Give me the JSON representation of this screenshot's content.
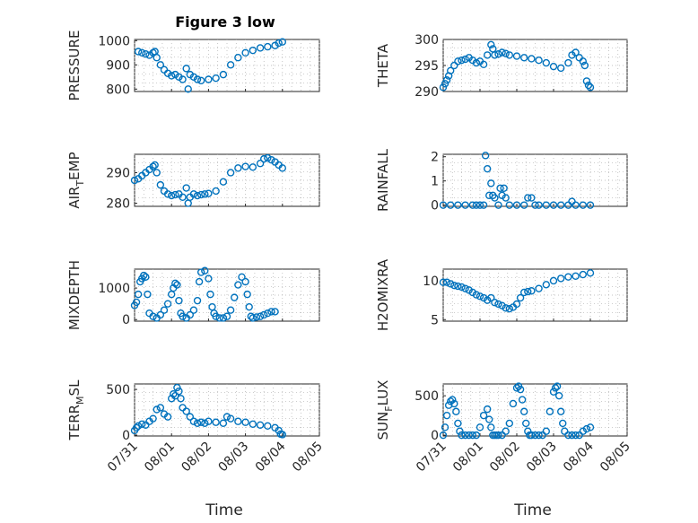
{
  "figure": {
    "title": "Figure 3 low"
  },
  "chart_data": [
    {
      "type": "scatter",
      "id": "pressure",
      "ylabel": "PRESSURE",
      "ylim": [
        790,
        1005
      ],
      "yticks": [
        "800",
        "900",
        "1000"
      ],
      "ytick_values": [
        800,
        900,
        1000
      ],
      "xlim": [
        0,
        5
      ],
      "xtick_labels": [
        "07/31",
        "08/01",
        "08/02",
        "08/03",
        "08/04",
        "08/05"
      ],
      "x": [
        0.1,
        0.2,
        0.3,
        0.4,
        0.5,
        0.55,
        0.6,
        0.7,
        0.8,
        0.9,
        1.0,
        1.1,
        1.2,
        1.3,
        1.4,
        1.45,
        1.5,
        1.6,
        1.7,
        1.8,
        2.0,
        2.2,
        2.4,
        2.6,
        2.8,
        3.0,
        3.2,
        3.4,
        3.6,
        3.8,
        3.9,
        4.0
      ],
      "y": [
        955,
        950,
        945,
        940,
        950,
        955,
        930,
        900,
        880,
        865,
        855,
        860,
        850,
        840,
        885,
        800,
        860,
        850,
        840,
        835,
        840,
        845,
        860,
        900,
        930,
        950,
        960,
        970,
        975,
        980,
        990,
        995
      ]
    },
    {
      "type": "scatter",
      "id": "theta",
      "ylabel": "THETA",
      "ylim": [
        290,
        300
      ],
      "yticks": [
        "290",
        "295",
        "300"
      ],
      "ytick_values": [
        290,
        295,
        300
      ],
      "xlim": [
        0,
        5
      ],
      "x": [
        0.0,
        0.05,
        0.1,
        0.15,
        0.2,
        0.3,
        0.4,
        0.5,
        0.6,
        0.7,
        0.8,
        0.9,
        1.0,
        1.1,
        1.2,
        1.3,
        1.35,
        1.4,
        1.5,
        1.6,
        1.7,
        1.8,
        2.0,
        2.2,
        2.4,
        2.6,
        2.8,
        3.0,
        3.2,
        3.4,
        3.5,
        3.6,
        3.7,
        3.8,
        3.85,
        3.9,
        3.95,
        4.0
      ],
      "y": [
        290.8,
        291.5,
        292.2,
        293,
        294,
        295,
        295.8,
        296,
        296.2,
        296.5,
        296,
        295.5,
        295.8,
        295.2,
        297,
        299,
        298.2,
        297,
        297.2,
        297.5,
        297.3,
        297.0,
        296.8,
        296.5,
        296.3,
        296.0,
        295.5,
        294.8,
        294.5,
        295.5,
        297,
        297.5,
        296.5,
        295.8,
        295,
        292,
        291.2,
        290.8
      ]
    },
    {
      "type": "scatter",
      "id": "air_temp",
      "ylabel_main": "AIR",
      "ylabel_sub": "T",
      "ylabel_rest": "EMP",
      "ylim": [
        279,
        296
      ],
      "yticks": [
        "280",
        "290"
      ],
      "ytick_values": [
        280,
        290
      ],
      "xlim": [
        0,
        5
      ],
      "x": [
        0.0,
        0.1,
        0.2,
        0.3,
        0.4,
        0.5,
        0.55,
        0.6,
        0.7,
        0.8,
        0.9,
        1.0,
        1.1,
        1.2,
        1.3,
        1.4,
        1.45,
        1.5,
        1.6,
        1.7,
        1.8,
        1.9,
        2.0,
        2.2,
        2.4,
        2.6,
        2.8,
        3.0,
        3.2,
        3.4,
        3.5,
        3.6,
        3.7,
        3.8,
        3.9,
        4.0
      ],
      "y": [
        287.5,
        288,
        289,
        290,
        291,
        292,
        292.5,
        290,
        286,
        284,
        283,
        282.5,
        282.8,
        283,
        282,
        285,
        280,
        282,
        283,
        282.5,
        282.8,
        283,
        283.2,
        284,
        287,
        290,
        291.5,
        292,
        291.8,
        293,
        294.5,
        294.8,
        294.2,
        293.5,
        292.5,
        291.5
      ]
    },
    {
      "type": "scatter",
      "id": "rainfall",
      "ylabel": "RAINFALL",
      "ylim": [
        -0.05,
        2.1
      ],
      "yticks": [
        "0",
        "1",
        "2"
      ],
      "ytick_values": [
        0,
        1,
        2
      ],
      "xlim": [
        0,
        5
      ],
      "x": [
        0.0,
        0.2,
        0.4,
        0.6,
        0.8,
        0.9,
        1.0,
        1.1,
        1.15,
        1.2,
        1.25,
        1.3,
        1.35,
        1.4,
        1.5,
        1.55,
        1.6,
        1.65,
        1.7,
        1.8,
        2.0,
        2.2,
        2.3,
        2.4,
        2.5,
        2.6,
        2.8,
        3.0,
        3.2,
        3.4,
        3.5,
        3.6,
        3.8,
        4.0
      ],
      "y": [
        0,
        0,
        0,
        0,
        0,
        0,
        0,
        0,
        2.05,
        1.5,
        0.4,
        0.9,
        0.4,
        0.3,
        0,
        0.7,
        0.4,
        0.7,
        0.3,
        0,
        0,
        0,
        0.3,
        0.3,
        0,
        0,
        0,
        0,
        0,
        0,
        0.15,
        0,
        0,
        0
      ]
    },
    {
      "type": "scatter",
      "id": "mixdepth",
      "ylabel": "MIXDEPTH",
      "ylim": [
        -50,
        1600
      ],
      "yticks": [
        "0",
        "1000"
      ],
      "ytick_values": [
        0,
        1000
      ],
      "xlim": [
        0,
        5
      ],
      "x": [
        0.0,
        0.05,
        0.1,
        0.15,
        0.2,
        0.25,
        0.3,
        0.35,
        0.4,
        0.5,
        0.6,
        0.7,
        0.8,
        0.9,
        1.0,
        1.05,
        1.1,
        1.15,
        1.2,
        1.25,
        1.3,
        1.4,
        1.5,
        1.6,
        1.7,
        1.75,
        1.8,
        1.9,
        2.0,
        2.05,
        2.1,
        2.15,
        2.2,
        2.3,
        2.4,
        2.5,
        2.6,
        2.7,
        2.8,
        2.9,
        3.0,
        3.05,
        3.1,
        3.15,
        3.2,
        3.3,
        3.4,
        3.5,
        3.6,
        3.7,
        3.8
      ],
      "y": [
        450,
        550,
        800,
        1200,
        1300,
        1400,
        1350,
        800,
        200,
        100,
        50,
        150,
        300,
        500,
        800,
        1000,
        1150,
        1100,
        600,
        200,
        100,
        50,
        150,
        300,
        600,
        1200,
        1500,
        1550,
        1300,
        800,
        400,
        200,
        100,
        50,
        50,
        100,
        300,
        700,
        1100,
        1350,
        1200,
        800,
        400,
        100,
        50,
        80,
        100,
        150,
        200,
        250,
        250
      ]
    },
    {
      "type": "scatter",
      "id": "h2omixra",
      "ylabel": "H2OMIXRA",
      "ylim": [
        4.8,
        11.5
      ],
      "yticks": [
        "5",
        "10"
      ],
      "ytick_values": [
        5,
        10
      ],
      "xlim": [
        0,
        5
      ],
      "x": [
        0.0,
        0.1,
        0.2,
        0.3,
        0.4,
        0.5,
        0.6,
        0.7,
        0.8,
        0.9,
        1.0,
        1.1,
        1.2,
        1.3,
        1.4,
        1.5,
        1.6,
        1.7,
        1.8,
        1.9,
        2.0,
        2.1,
        2.2,
        2.3,
        2.4,
        2.6,
        2.8,
        3.0,
        3.2,
        3.4,
        3.6,
        3.8,
        4.0
      ],
      "y": [
        9.8,
        9.8,
        9.6,
        9.4,
        9.3,
        9.2,
        9.0,
        8.8,
        8.5,
        8.2,
        8.0,
        7.8,
        7.5,
        7.8,
        7.2,
        7.0,
        6.8,
        6.5,
        6.4,
        6.6,
        7.0,
        7.8,
        8.5,
        8.6,
        8.7,
        9.0,
        9.5,
        10.0,
        10.3,
        10.5,
        10.6,
        10.8,
        11.0
      ]
    },
    {
      "type": "scatter",
      "id": "terr_msl",
      "ylabel_main": "TERR",
      "ylabel_sub": "M",
      "ylabel_rest": "SL",
      "ylim": [
        -10,
        560
      ],
      "yticks": [
        "0",
        "500"
      ],
      "ytick_values": [
        0,
        500
      ],
      "xlim": [
        0,
        5
      ],
      "x": [
        0.0,
        0.05,
        0.1,
        0.2,
        0.3,
        0.4,
        0.5,
        0.6,
        0.7,
        0.8,
        0.9,
        1.0,
        1.05,
        1.1,
        1.15,
        1.2,
        1.25,
        1.3,
        1.4,
        1.5,
        1.6,
        1.7,
        1.8,
        1.9,
        2.0,
        2.2,
        2.4,
        2.5,
        2.6,
        2.8,
        3.0,
        3.2,
        3.4,
        3.6,
        3.8,
        3.9,
        3.95,
        4.0
      ],
      "y": [
        50,
        80,
        100,
        120,
        110,
        150,
        180,
        280,
        300,
        230,
        200,
        400,
        450,
        430,
        520,
        480,
        400,
        300,
        260,
        200,
        150,
        130,
        140,
        130,
        150,
        140,
        130,
        200,
        180,
        150,
        140,
        120,
        110,
        100,
        80,
        50,
        10,
        5
      ]
    },
    {
      "type": "scatter",
      "id": "sun_flux",
      "ylabel_main": "SUN",
      "ylabel_sub": "F",
      "ylabel_rest": "LUX",
      "ylim": [
        -10,
        650
      ],
      "yticks": [
        "0",
        "500"
      ],
      "ytick_values": [
        0,
        500
      ],
      "xlim": [
        0,
        5
      ],
      "x": [
        0.0,
        0.05,
        0.1,
        0.15,
        0.2,
        0.25,
        0.3,
        0.35,
        0.4,
        0.45,
        0.5,
        0.6,
        0.7,
        0.8,
        0.9,
        1.0,
        1.1,
        1.2,
        1.25,
        1.3,
        1.35,
        1.4,
        1.45,
        1.5,
        1.6,
        1.7,
        1.8,
        1.9,
        2.0,
        2.05,
        2.1,
        2.15,
        2.2,
        2.25,
        2.3,
        2.35,
        2.4,
        2.5,
        2.6,
        2.7,
        2.8,
        2.9,
        3.0,
        3.05,
        3.1,
        3.15,
        3.2,
        3.25,
        3.3,
        3.4,
        3.5,
        3.6,
        3.7,
        3.8,
        3.9,
        4.0
      ],
      "y": [
        0,
        100,
        250,
        380,
        430,
        450,
        400,
        300,
        150,
        50,
        0,
        0,
        0,
        0,
        0,
        100,
        250,
        330,
        200,
        100,
        0,
        0,
        0,
        0,
        0,
        50,
        150,
        400,
        600,
        620,
        580,
        450,
        300,
        150,
        50,
        0,
        0,
        0,
        0,
        0,
        50,
        300,
        550,
        600,
        620,
        500,
        300,
        150,
        50,
        0,
        0,
        0,
        0,
        50,
        80,
        100
      ]
    }
  ],
  "bottom_axes": {
    "xlabel": "Time",
    "xtick_labels": [
      "07/31",
      "08/01",
      "08/02",
      "08/03",
      "08/04",
      "08/05"
    ]
  },
  "colors": {
    "marker": "#0072bd",
    "axis": "#262626",
    "grid": "#b0b0b0"
  }
}
